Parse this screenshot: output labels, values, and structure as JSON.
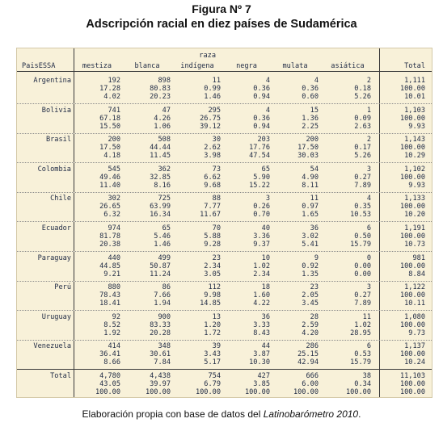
{
  "figure": {
    "title": "Figura Nº 7",
    "subtitle": "Adscripción racial en diez países de Sudamérica"
  },
  "table": {
    "group_header": "raza",
    "row_header": "PaisESSA",
    "columns": [
      "mestiza",
      "blanca",
      "indígena",
      "negra",
      "mulata",
      "asiática",
      "Total"
    ],
    "rows": [
      {
        "label": "Argentina",
        "values": [
          [
            "192",
            "17.28",
            "4.02"
          ],
          [
            "898",
            "80.83",
            "20.23"
          ],
          [
            "11",
            "0.99",
            "1.46"
          ],
          [
            "4",
            "0.36",
            "0.94"
          ],
          [
            "4",
            "0.36",
            "0.60"
          ],
          [
            "2",
            "0.18",
            "5.26"
          ],
          [
            "1,111",
            "100.00",
            "10.01"
          ]
        ]
      },
      {
        "label": "Bolivia",
        "values": [
          [
            "741",
            "67.18",
            "15.50"
          ],
          [
            "47",
            "4.26",
            "1.06"
          ],
          [
            "295",
            "26.75",
            "39.12"
          ],
          [
            "4",
            "0.36",
            "0.94"
          ],
          [
            "15",
            "1.36",
            "2.25"
          ],
          [
            "1",
            "0.09",
            "2.63"
          ],
          [
            "1,103",
            "100.00",
            "9.93"
          ]
        ]
      },
      {
        "label": "Brasil",
        "values": [
          [
            "200",
            "17.50",
            "4.18"
          ],
          [
            "508",
            "44.44",
            "11.45"
          ],
          [
            "30",
            "2.62",
            "3.98"
          ],
          [
            "203",
            "17.76",
            "47.54"
          ],
          [
            "200",
            "17.50",
            "30.03"
          ],
          [
            "2",
            "0.17",
            "5.26"
          ],
          [
            "1,143",
            "100.00",
            "10.29"
          ]
        ]
      },
      {
        "label": "Colombia",
        "values": [
          [
            "545",
            "49.46",
            "11.40"
          ],
          [
            "362",
            "32.85",
            "8.16"
          ],
          [
            "73",
            "6.62",
            "9.68"
          ],
          [
            "65",
            "5.90",
            "15.22"
          ],
          [
            "54",
            "4.90",
            "8.11"
          ],
          [
            "3",
            "0.27",
            "7.89"
          ],
          [
            "1,102",
            "100.00",
            "9.93"
          ]
        ]
      },
      {
        "label": "Chile",
        "values": [
          [
            "302",
            "26.65",
            "6.32"
          ],
          [
            "725",
            "63.99",
            "16.34"
          ],
          [
            "88",
            "7.77",
            "11.67"
          ],
          [
            "3",
            "0.26",
            "0.70"
          ],
          [
            "11",
            "0.97",
            "1.65"
          ],
          [
            "4",
            "0.35",
            "10.53"
          ],
          [
            "1,133",
            "100.00",
            "10.20"
          ]
        ]
      },
      {
        "label": "Ecuador",
        "values": [
          [
            "974",
            "81.78",
            "20.38"
          ],
          [
            "65",
            "5.46",
            "1.46"
          ],
          [
            "70",
            "5.88",
            "9.28"
          ],
          [
            "40",
            "3.36",
            "9.37"
          ],
          [
            "36",
            "3.02",
            "5.41"
          ],
          [
            "6",
            "0.50",
            "15.79"
          ],
          [
            "1,191",
            "100.00",
            "10.73"
          ]
        ]
      },
      {
        "label": "Paraguay",
        "values": [
          [
            "440",
            "44.85",
            "9.21"
          ],
          [
            "499",
            "50.87",
            "11.24"
          ],
          [
            "23",
            "2.34",
            "3.05"
          ],
          [
            "10",
            "1.02",
            "2.34"
          ],
          [
            "9",
            "0.92",
            "1.35"
          ],
          [
            "0",
            "0.00",
            "0.00"
          ],
          [
            "981",
            "100.00",
            "8.84"
          ]
        ]
      },
      {
        "label": "Perú",
        "values": [
          [
            "880",
            "78.43",
            "18.41"
          ],
          [
            "86",
            "7.66",
            "1.94"
          ],
          [
            "112",
            "9.98",
            "14.85"
          ],
          [
            "18",
            "1.60",
            "4.22"
          ],
          [
            "23",
            "2.05",
            "3.45"
          ],
          [
            "3",
            "0.27",
            "7.89"
          ],
          [
            "1,122",
            "100.00",
            "10.11"
          ]
        ]
      },
      {
        "label": "Uruguay",
        "values": [
          [
            "92",
            "8.52",
            "1.92"
          ],
          [
            "900",
            "83.33",
            "20.28"
          ],
          [
            "13",
            "1.20",
            "1.72"
          ],
          [
            "36",
            "3.33",
            "8.43"
          ],
          [
            "28",
            "2.59",
            "4.20"
          ],
          [
            "11",
            "1.02",
            "28.95"
          ],
          [
            "1,080",
            "100.00",
            "9.73"
          ]
        ]
      },
      {
        "label": "Venezuela",
        "values": [
          [
            "414",
            "36.41",
            "8.66"
          ],
          [
            "348",
            "30.61",
            "7.84"
          ],
          [
            "39",
            "3.43",
            "5.17"
          ],
          [
            "44",
            "3.87",
            "10.30"
          ],
          [
            "286",
            "25.15",
            "42.94"
          ],
          [
            "6",
            "0.53",
            "15.79"
          ],
          [
            "1,137",
            "100.00",
            "10.24"
          ]
        ]
      },
      {
        "label": "Total",
        "values": [
          [
            "4,780",
            "43.05",
            "100.00"
          ],
          [
            "4,438",
            "39.97",
            "100.00"
          ],
          [
            "754",
            "6.79",
            "100.00"
          ],
          [
            "427",
            "3.85",
            "100.00"
          ],
          [
            "666",
            "6.00",
            "100.00"
          ],
          [
            "38",
            "0.34",
            "100.00"
          ],
          [
            "11,103",
            "100.00",
            "100.00"
          ]
        ]
      }
    ]
  },
  "caption": {
    "prefix": "Elaboración propia con base de datos del ",
    "source": "Latinobarómetro 2010",
    "suffix": "."
  }
}
